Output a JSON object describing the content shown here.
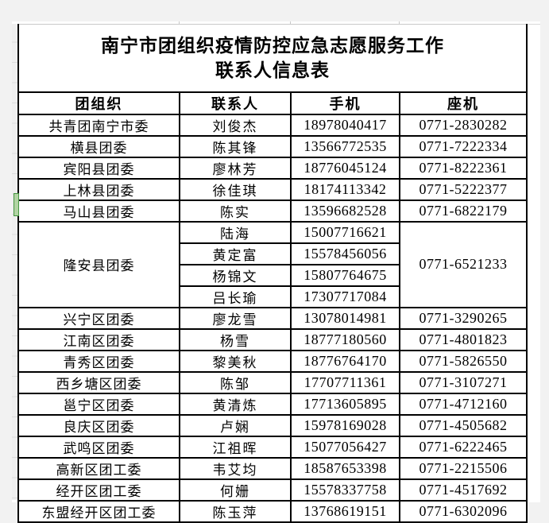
{
  "window": {
    "background": "#f2f2f2",
    "sheet_background": "#ffffff",
    "grid_line_color": "#d9d9d9",
    "table_border_color": "#000000",
    "text_color": "#000000"
  },
  "selection_indicator": {
    "fill": "#b2d4a4",
    "border": "#44953f",
    "selected_org": "马山县团委"
  },
  "table": {
    "title_line1": "南宁市团组织疫情防控应急志愿服务工作",
    "title_line2": "联系人信息表",
    "headers": [
      "团组织",
      "联系人",
      "手机",
      "座机"
    ],
    "groups": [
      {
        "org": "共青团南宁市委",
        "contacts": [
          {
            "name": "刘俊杰",
            "mobile": "18978040417"
          }
        ],
        "landline": "0771-2830282"
      },
      {
        "org": "横县团委",
        "contacts": [
          {
            "name": "陈其锋",
            "mobile": "13566772535"
          }
        ],
        "landline": "0771-7222334"
      },
      {
        "org": "宾阳县团委",
        "contacts": [
          {
            "name": "廖林芳",
            "mobile": "18776045124"
          }
        ],
        "landline": "0771-8222361"
      },
      {
        "org": "上林县团委",
        "contacts": [
          {
            "name": "徐佳琪",
            "mobile": "18174113342"
          }
        ],
        "landline": "0771-5222377"
      },
      {
        "org": "马山县团委",
        "contacts": [
          {
            "name": "陈实",
            "mobile": "13596682528"
          }
        ],
        "landline": "0771-6822179",
        "selected": true
      },
      {
        "org": "隆安县团委",
        "contacts": [
          {
            "name": "陆海",
            "mobile": "15007716621"
          },
          {
            "name": "黄定富",
            "mobile": "15578456056"
          },
          {
            "name": "杨锦文",
            "mobile": "15807764675"
          },
          {
            "name": "吕长瑜",
            "mobile": "17307717084"
          }
        ],
        "landline": "0771-6521233"
      },
      {
        "org": "兴宁区团委",
        "contacts": [
          {
            "name": "廖龙雪",
            "mobile": "13078014981"
          }
        ],
        "landline": "0771-3290265"
      },
      {
        "org": "江南区团委",
        "contacts": [
          {
            "name": "杨雪",
            "mobile": "18777180560"
          }
        ],
        "landline": "0771-4801823"
      },
      {
        "org": "青秀区团委",
        "contacts": [
          {
            "name": "黎美秋",
            "mobile": "18776764170"
          }
        ],
        "landline": "0771-5826550"
      },
      {
        "org": "西乡塘区团委",
        "contacts": [
          {
            "name": "陈邹",
            "mobile": "17707711361"
          }
        ],
        "landline": "0771-3107271"
      },
      {
        "org": "邕宁区团委",
        "contacts": [
          {
            "name": "黄清炼",
            "mobile": "17713605895"
          }
        ],
        "landline": "0771-4712160"
      },
      {
        "org": "良庆区团委",
        "contacts": [
          {
            "name": "卢娴",
            "mobile": "15978169028"
          }
        ],
        "landline": "0771-4505682"
      },
      {
        "org": "武鸣区团委",
        "contacts": [
          {
            "name": "江祖晖",
            "mobile": "15077056427"
          }
        ],
        "landline": "0771-6222465"
      },
      {
        "org": "高新区团工委",
        "contacts": [
          {
            "name": "韦艾均",
            "mobile": "18587653398"
          }
        ],
        "landline": "0771-2215506"
      },
      {
        "org": "经开区团工委",
        "contacts": [
          {
            "name": "何姗",
            "mobile": "15578337758"
          }
        ],
        "landline": "0771-4517692"
      },
      {
        "org": "东盟经开区团工委",
        "contacts": [
          {
            "name": "陈玉萍",
            "mobile": "13768619151"
          }
        ],
        "landline": "0771-6302096"
      }
    ]
  }
}
